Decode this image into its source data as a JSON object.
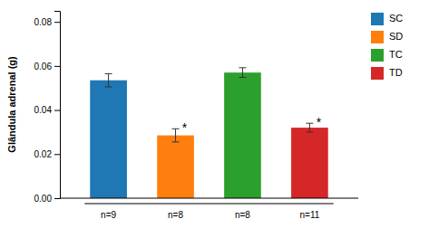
{
  "chart_data": {
    "type": "bar",
    "categories": [
      "SC",
      "SD",
      "TC",
      "TD"
    ],
    "values": [
      0.0535,
      0.0285,
      0.057,
      0.032
    ],
    "errors": [
      0.003,
      0.003,
      0.0022,
      0.002
    ],
    "ylabel": "Glândula adrenal (g)",
    "ylim": [
      0,
      0.085
    ],
    "yticks": [
      {
        "value": 0,
        "label": "0.00"
      },
      0.02,
      0.04,
      0.06,
      0.08
    ],
    "n_labels": [
      "n=9",
      "n=8",
      "n=8",
      "n=11"
    ],
    "annotations": [
      {
        "text": "*",
        "category": "SD"
      },
      {
        "text": "*",
        "category": "TD"
      }
    ],
    "legend": "right",
    "grid": false,
    "tick_labels": "y"
  }
}
